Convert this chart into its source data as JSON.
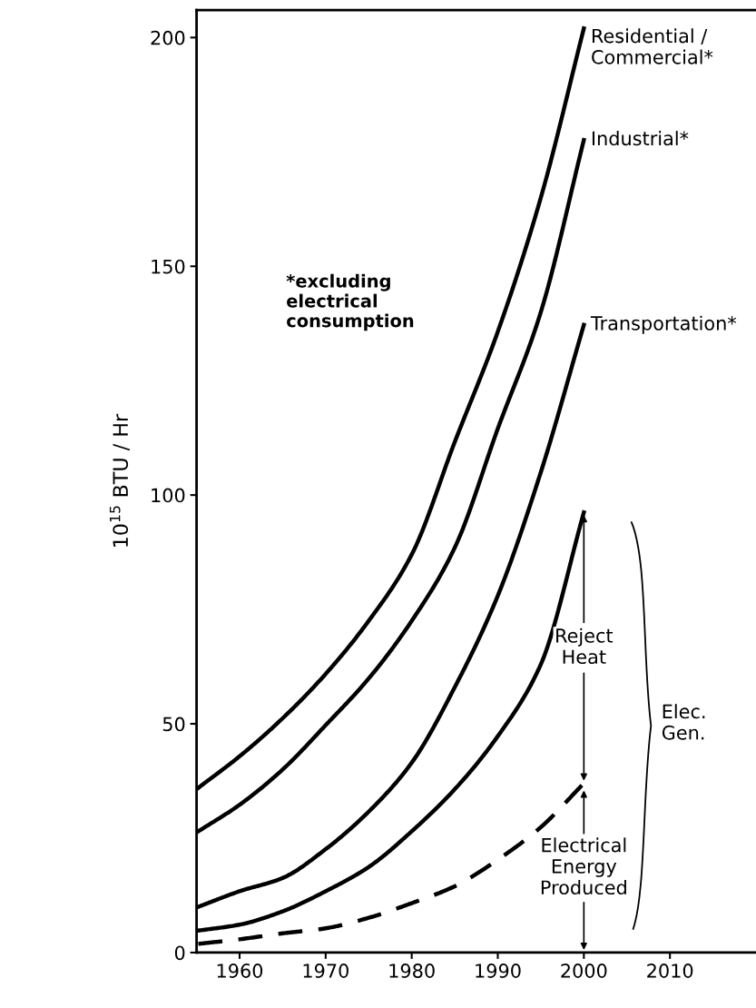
{
  "chart_data": {
    "type": "line",
    "ylabel": "10$^{15}$ BTU / Hr",
    "x": [
      1955.2,
      1960,
      1965,
      1970,
      1975,
      1980,
      1985,
      1990,
      1995,
      2000
    ],
    "xlim": [
      1955,
      2020
    ],
    "xticks": [
      1960,
      1970,
      1980,
      1990,
      2000,
      2010
    ],
    "ylim": [
      0,
      206
    ],
    "yticks": [
      0,
      50,
      100,
      150,
      200
    ],
    "grid": false,
    "marker": "none",
    "series": [
      {
        "name": "Residential /\nCommercial*",
        "color": "#000000",
        "line_style": "solid",
        "values": [
          36.0,
          42.9,
          51.2,
          60.9,
          72.5,
          87.0,
          111.6,
          135.7,
          165,
          202
        ]
      },
      {
        "name": "Industrial*",
        "color": "#000000",
        "line_style": "solid",
        "values": [
          26.5,
          32.3,
          40.0,
          49.7,
          59.9,
          72.5,
          88.5,
          114.5,
          140,
          177.6
        ]
      },
      {
        "name": "Transportation*",
        "color": "#000000",
        "line_style": "solid",
        "values": [
          10.0,
          13.4,
          16.3,
          22.6,
          30.8,
          41.5,
          58,
          78,
          105,
          137.2
        ]
      },
      {
        "color": "#000000",
        "line_style": "solid",
        "values": [
          4.8,
          6.1,
          9.0,
          13.4,
          18.7,
          26.5,
          35.7,
          47.3,
          63,
          96.2
        ]
      },
      {
        "color": "#000000",
        "line_style": "dashed",
        "values": [
          1.9,
          2.9,
          4.2,
          5.3,
          7.6,
          10.8,
          14.5,
          20.3,
          27.4,
          37.0
        ]
      }
    ],
    "annotations": [
      "*excluding\nelectrical\nconsumption",
      {
        "text": "Reject\nHeat",
        "x": 2000,
        "y": 96.2
      },
      {
        "text": "Electrical\nEnergy\nProduced",
        "x": 2000,
        "y": 37.0
      },
      "Elec.\nGen."
    ]
  }
}
